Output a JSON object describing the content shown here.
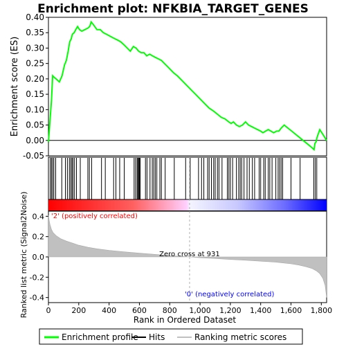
{
  "chart_data": {
    "type": "line",
    "title": "Enrichment plot: NFKBIA_TARGET_GENES",
    "es_panel": {
      "ylabel": "Enrichment score (ES)",
      "ylim": [
        -0.05,
        0.4
      ],
      "yticks": [
        -0.05,
        0.0,
        0.05,
        0.1,
        0.15,
        0.2,
        0.25,
        0.3,
        0.35,
        0.4
      ],
      "ytick_labels": [
        "-0.05",
        "0.00",
        "0.05",
        "0.10",
        "0.15",
        "0.20",
        "0.25",
        "0.30",
        "0.35",
        "0.40"
      ],
      "series": [
        {
          "name": "Enrichment profile",
          "color": "#00ff00",
          "x": [
            0,
            8,
            14,
            20,
            28,
            38,
            50,
            72,
            90,
            106,
            118,
            130,
            140,
            150,
            158,
            170,
            180,
            192,
            205,
            220,
            240,
            260,
            272,
            282,
            298,
            320,
            342,
            362,
            382,
            402,
            420,
            440,
            460,
            478,
            500,
            520,
            540,
            560,
            578,
            595,
            612,
            630,
            648,
            668,
            686,
            705,
            725,
            745,
            765,
            785,
            805,
            825,
            850,
            880,
            910,
            940,
            970,
            1000,
            1030,
            1060,
            1090,
            1115,
            1140,
            1165,
            1190,
            1205,
            1220,
            1240,
            1260,
            1280,
            1300,
            1320,
            1340,
            1360,
            1380,
            1400,
            1415,
            1432,
            1450,
            1468,
            1486,
            1505,
            1520,
            1535,
            1555,
            1580,
            1605,
            1630,
            1655,
            1680,
            1705,
            1730,
            1752,
            1758,
            1765,
            1772,
            1790,
            1810,
            1835
          ],
          "y": [
            -0.005,
            0.05,
            0.09,
            0.13,
            0.21,
            0.205,
            0.2,
            0.19,
            0.21,
            0.245,
            0.26,
            0.29,
            0.32,
            0.33,
            0.345,
            0.35,
            0.36,
            0.37,
            0.36,
            0.355,
            0.36,
            0.365,
            0.37,
            0.385,
            0.375,
            0.36,
            0.36,
            0.35,
            0.345,
            0.34,
            0.335,
            0.33,
            0.325,
            0.32,
            0.31,
            0.3,
            0.29,
            0.305,
            0.3,
            0.29,
            0.285,
            0.285,
            0.275,
            0.28,
            0.275,
            0.27,
            0.265,
            0.26,
            0.25,
            0.24,
            0.23,
            0.22,
            0.21,
            0.195,
            0.18,
            0.165,
            0.15,
            0.135,
            0.12,
            0.105,
            0.095,
            0.085,
            0.075,
            0.07,
            0.06,
            0.055,
            0.06,
            0.05,
            0.045,
            0.05,
            0.06,
            0.05,
            0.045,
            0.04,
            0.035,
            0.03,
            0.025,
            0.03,
            0.035,
            0.03,
            0.025,
            0.03,
            0.03,
            0.04,
            0.05,
            0.04,
            0.03,
            0.02,
            0.01,
            0.0,
            -0.01,
            -0.02,
            -0.03,
            -0.01,
            -0.005,
            0.01,
            0.035,
            0.02,
            0.0
          ]
        }
      ]
    },
    "hits_panel": {
      "hit_positions": [
        12,
        20,
        28,
        36,
        48,
        88,
        112,
        125,
        138,
        147,
        155,
        162,
        172,
        185,
        210,
        260,
        270,
        285,
        350,
        375,
        430,
        445,
        470,
        500,
        565,
        575,
        585,
        590,
        595,
        600,
        605,
        640,
        650,
        670,
        685,
        695,
        705,
        715,
        735,
        745,
        770,
        830,
        905,
        935,
        990,
        1010,
        1025,
        1050,
        1060,
        1075,
        1090,
        1100,
        1115,
        1125,
        1145,
        1180,
        1190,
        1200,
        1215,
        1240,
        1255,
        1265,
        1275,
        1290,
        1310,
        1325,
        1345,
        1360,
        1390,
        1400,
        1420,
        1430,
        1450,
        1460,
        1475,
        1500,
        1515,
        1525,
        1535,
        1545,
        1600,
        1660,
        1750,
        1760,
        1770
      ]
    },
    "metric_panel": {
      "ylabel": "Ranked list metric (Signal2Noise)",
      "xlabel": "Rank in Ordered Dataset",
      "ylim": [
        -0.45,
        0.45
      ],
      "yticks": [
        -0.4,
        -0.2,
        0.0,
        0.2,
        0.4
      ],
      "ytick_labels": [
        "-0.4",
        "-0.2",
        "0.0",
        "0.2",
        "0.4"
      ],
      "x": [
        0,
        5,
        10,
        20,
        30,
        50,
        80,
        120,
        160,
        200,
        260,
        320,
        400,
        500,
        600,
        700,
        800,
        900,
        931,
        1000,
        1100,
        1200,
        1300,
        1400,
        1500,
        1600,
        1650,
        1700,
        1740,
        1770,
        1790,
        1810,
        1825,
        1835
      ],
      "values": [
        0.41,
        0.36,
        0.32,
        0.27,
        0.24,
        0.21,
        0.18,
        0.155,
        0.135,
        0.115,
        0.095,
        0.08,
        0.065,
        0.05,
        0.037,
        0.025,
        0.013,
        0.003,
        0.0,
        -0.008,
        -0.016,
        -0.025,
        -0.033,
        -0.042,
        -0.052,
        -0.068,
        -0.08,
        -0.097,
        -0.115,
        -0.14,
        -0.165,
        -0.21,
        -0.28,
        -0.4
      ],
      "fill_color": "#c0c0c0",
      "zero_cross_label": "Zero cross at 931",
      "zero_cross_rank": 931,
      "positive_label": "'2' (positively correlated)",
      "negative_label": "'0' (negatively correlated)",
      "positive_color": "#ff0000",
      "negative_color": "#0000ff"
    },
    "xlim": [
      0,
      1835
    ],
    "xticks": [
      0,
      200,
      400,
      600,
      800,
      1000,
      1200,
      1400,
      1600,
      1800
    ],
    "xtick_labels": [
      "0",
      "200",
      "400",
      "600",
      "800",
      "1,000",
      "1,200",
      "1,400",
      "1,600",
      "1,800"
    ],
    "legend": {
      "placement": "bottom",
      "entries": [
        {
          "label": "Enrichment profile",
          "color": "#00ff00"
        },
        {
          "label": "Hits",
          "color": "#000000"
        },
        {
          "label": "Ranking metric scores",
          "color": "#c0c0c0"
        }
      ]
    }
  }
}
